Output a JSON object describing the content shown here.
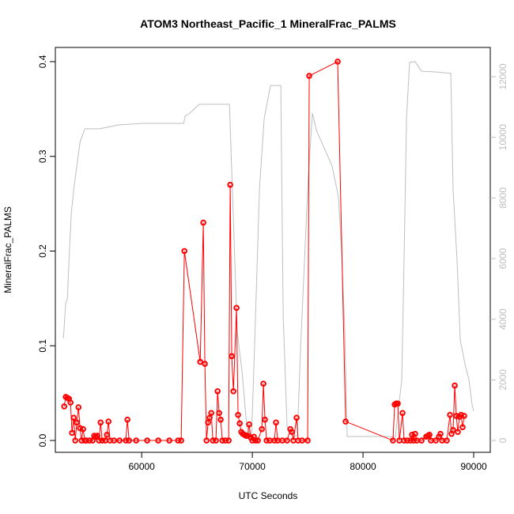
{
  "chart_data": {
    "type": "line",
    "title": "ATOM3 Northeast_Pacific_1 MineralFrac_PALMS",
    "x_label": "UTC Seconds",
    "y_label": "MineralFrac_PALMS",
    "xlim": [
      52200,
      91500
    ],
    "ylim": [
      -0.0125,
      0.415
    ],
    "y2lim": [
      -391,
      12965
    ],
    "xticks": [
      60000,
      70000,
      80000,
      90000
    ],
    "yticks": [
      {
        "value": 0,
        "label": "0.0"
      },
      0.1,
      0.2,
      0.3,
      0.4
    ],
    "y2ticks": [
      0,
      2000,
      4000,
      6000,
      8000,
      10000,
      12000
    ],
    "series": [
      {
        "color": "#ff0000",
        "markers": true,
        "x": [
          53000,
          53140,
          53290,
          53430,
          53570,
          53710,
          53860,
          54000,
          54140,
          54290,
          54430,
          54570,
          54710,
          54860,
          55000,
          55290,
          55570,
          55710,
          55860,
          56000,
          56140,
          56290,
          56430,
          56710,
          56860,
          57000,
          57140,
          57500,
          58000,
          58570,
          58710,
          58860,
          59500,
          60500,
          61500,
          62500,
          63290,
          63570,
          63860,
          65290,
          65570,
          65710,
          65860,
          66000,
          66140,
          66290,
          66430,
          66710,
          66860,
          67000,
          67140,
          67290,
          67570,
          67860,
          68000,
          68140,
          68290,
          68570,
          68710,
          68860,
          69000,
          69140,
          69290,
          69430,
          69570,
          69710,
          69860,
          70000,
          70140,
          70290,
          70500,
          70860,
          71000,
          71140,
          71290,
          71570,
          72000,
          72140,
          72290,
          72710,
          73140,
          73430,
          73570,
          73710,
          74000,
          74140,
          74500,
          75000,
          75140,
          77710,
          78430,
          82710,
          82860,
          83000,
          83140,
          83290,
          83570,
          83710,
          84000,
          84290,
          84430,
          84570,
          84710,
          84860,
          85290,
          85710,
          85860,
          86000,
          86140,
          86570,
          86860,
          87000,
          87140,
          87570,
          87860,
          88000,
          88140,
          88290,
          88430,
          88570,
          88710,
          88860,
          89000,
          89140
        ],
        "values": [
          0.036,
          0.046,
          0.045,
          0.044,
          0.04,
          0.008,
          0.024,
          0,
          0.019,
          0.035,
          0.013,
          0,
          0.012,
          0,
          0,
          0,
          0,
          0.005,
          0.004,
          0.005,
          0,
          0.019,
          0,
          0,
          0.006,
          0.02,
          0,
          0,
          0,
          0,
          0.022,
          0,
          0,
          0,
          0,
          0,
          0,
          0,
          0.2,
          0.083,
          0.23,
          0.081,
          0,
          0.019,
          0.024,
          0.029,
          0,
          0,
          0.052,
          0.029,
          0.022,
          0,
          0,
          0,
          0.27,
          0.089,
          0.052,
          0.14,
          0.027,
          0.018,
          0.009,
          0.007,
          0.006,
          0.005,
          0.005,
          0.017,
          0.003,
          0,
          0.004,
          0,
          0,
          0.012,
          0.06,
          0.022,
          0,
          0,
          0,
          0.019,
          0,
          0,
          0,
          0.012,
          0.009,
          0,
          0.024,
          0,
          0,
          0,
          0.385,
          0.4,
          0.02,
          0,
          0.038,
          0.039,
          0.039,
          0,
          0.029,
          0,
          0,
          0,
          0.006,
          0,
          0.007,
          0,
          0,
          0.004,
          0.005,
          0.006,
          0,
          0,
          0.004,
          0.007,
          0,
          0,
          0.027,
          0.007,
          0.011,
          0.058,
          0.026,
          0.009,
          0.025,
          0.027,
          0.014,
          0.026
        ]
      },
      {
        "color": "#bebebe",
        "axis": "y2",
        "markers": false,
        "x": [
          52930,
          53140,
          53290,
          53430,
          53640,
          53860,
          54140,
          54430,
          54860,
          56140,
          57930,
          60070,
          63790,
          63930,
          64360,
          65210,
          67930,
          68640,
          69070,
          69500,
          69930,
          70290,
          70640,
          71070,
          71640,
          72570,
          72790,
          73140,
          73710,
          74070,
          74360,
          74710,
          75070,
          75430,
          75790,
          77210,
          77790,
          78070,
          78360,
          78570,
          82930,
          83500,
          83710,
          83930,
          84210,
          84710,
          85290,
          86500,
          87930,
          88140,
          88500,
          88790,
          89210,
          89570,
          89860,
          90000
        ],
        "values": [
          3370,
          4540,
          4670,
          5920,
          7500,
          8270,
          9050,
          9840,
          10280,
          10280,
          10410,
          10460,
          10460,
          10700,
          10800,
          11090,
          11090,
          3570,
          2270,
          440,
          130,
          4100,
          8270,
          10620,
          11710,
          11710,
          4100,
          440,
          130,
          160,
          3050,
          5920,
          8790,
          10800,
          10230,
          9050,
          8010,
          6180,
          3570,
          130,
          130,
          2010,
          5920,
          10620,
          12470,
          12500,
          12180,
          12160,
          12110,
          8270,
          5920,
          3310,
          2530,
          2010,
          1170,
          970
        ]
      }
    ]
  }
}
